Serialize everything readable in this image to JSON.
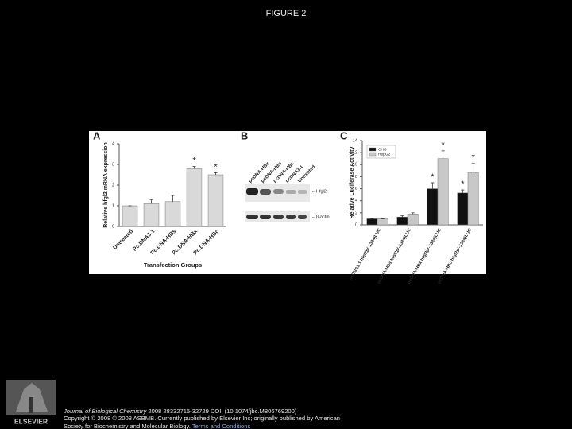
{
  "title": "FIGURE 2",
  "chart_data": [
    {
      "type": "bar",
      "panel_label": "A",
      "ylabel": "Relative hfgl2 mRNA expression",
      "xlabel": "Transfection Groups",
      "categories": [
        "Untreated",
        "Pc.DNA3.1",
        "Pc.DNA-HBs",
        "Pc.DNA-HBx",
        "Pc.DNA-HBc"
      ],
      "values": [
        1.0,
        1.1,
        1.2,
        2.8,
        2.5
      ],
      "errors": [
        0,
        0.2,
        0.3,
        0.1,
        0.1
      ],
      "annotations": [
        null,
        null,
        null,
        "*",
        "*"
      ],
      "color": "#d9d9d9",
      "ylim": [
        0,
        4
      ],
      "yticks": [
        0,
        1,
        2,
        3,
        4
      ]
    },
    {
      "type": "bar",
      "panel_label": "C",
      "ylabel": "Relative Luciferase Activity",
      "categories": [
        "pcDNA3.1 hfgl2p(-1334)LUC",
        "pcDNA-HBs hfgl2p(-1334)LUC",
        "pcDNA-HBx hfgl2p(-1334)LUC",
        "pcDNA-HBc hfgl2p(-1334)LUC"
      ],
      "series": [
        {
          "name": "CHO",
          "color": "#111111",
          "values": [
            1.0,
            1.3,
            6.0,
            5.3
          ],
          "errors": [
            0,
            0.2,
            1.0,
            0.5
          ],
          "annotations": [
            null,
            null,
            "*",
            "*"
          ]
        },
        {
          "name": "HepG2",
          "color": "#c8c8c8",
          "values": [
            1.0,
            1.8,
            11.0,
            8.7
          ],
          "errors": [
            0,
            0.2,
            1.3,
            1.5
          ],
          "annotations": [
            null,
            null,
            "*",
            "*"
          ]
        }
      ],
      "legend": "upper left",
      "ylim": [
        0,
        14
      ],
      "yticks": [
        0,
        2,
        4,
        6,
        8,
        10,
        12,
        14
      ]
    }
  ],
  "blot": {
    "panel_label": "B",
    "lanes": [
      "pcDNA-HBx",
      "pcDNA-HBs",
      "pcDNA-HBc",
      "pcDNA3.1",
      "Untreated"
    ],
    "bands": [
      "Hfgl2",
      "β-actin"
    ]
  },
  "footer": {
    "journal": "Journal of Biological Chemistry",
    "citation": "2008 28332715-32729 DOI: (10.1074/jbc.M806769200)",
    "copyright": "Copyright © 2008 © 2008 ASBMB. Currently published by Elsevier Inc; originally published by American",
    "copyright_2": "Society for Biochemistry and Molecular Biology.",
    "link": "Terms and Conditions",
    "publisher": "ELSEVIER"
  }
}
